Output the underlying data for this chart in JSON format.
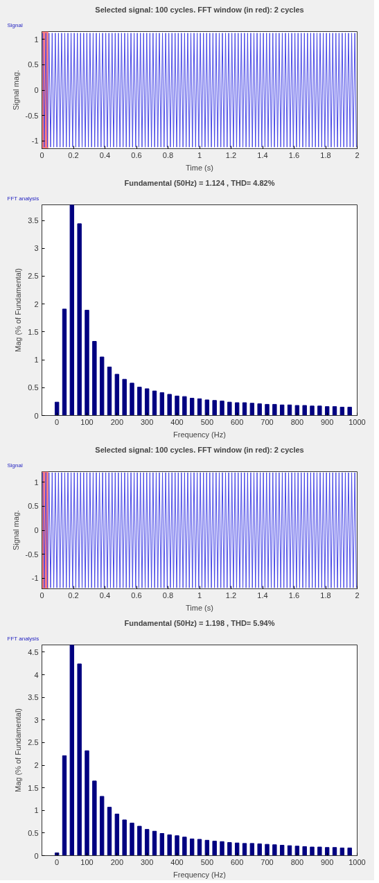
{
  "chart_data": [
    {
      "type": "line",
      "title": "Selected signal: 100 cycles. FFT window (in red): 2 cycles",
      "xlabel": "Time (s)",
      "ylabel": "Signal mag.",
      "annotations": [
        "Signal"
      ],
      "xlim": [
        0,
        2
      ],
      "xticks": [
        0,
        0.2,
        0.4,
        0.6,
        0.8,
        1,
        1.2,
        1.4,
        1.6,
        1.8,
        2
      ],
      "ylim": [
        -1.15,
        1.15
      ],
      "yticks": [
        -1,
        -0.5,
        0,
        0.5,
        1
      ],
      "bands": [
        {
          "axis": "x",
          "from": 0,
          "to": 0.04,
          "color": "#ff7070"
        }
      ],
      "series": [
        {
          "color": "#4646e6",
          "x": [
            0.005,
            0.015,
            0.025,
            0.035,
            0.045,
            0.055,
            0.065,
            0.075,
            0.085,
            0.095,
            0.105,
            0.115,
            0.125,
            0.135,
            0.145,
            0.155,
            0.165,
            0.175,
            0.185,
            0.195,
            0.205,
            0.215,
            0.225,
            0.235,
            0.245,
            0.255,
            0.265,
            0.275,
            0.285,
            0.295,
            0.305,
            0.315,
            0.325,
            0.335,
            0.345,
            0.355,
            0.365,
            0.375,
            0.385,
            0.395,
            0.405,
            0.415,
            0.425,
            0.435,
            0.445,
            0.455,
            0.465,
            0.475,
            0.485,
            0.495,
            0.505,
            0.515,
            0.525,
            0.535,
            0.545,
            0.555,
            0.565,
            0.575,
            0.585,
            0.595,
            0.605,
            0.615,
            0.625,
            0.635,
            0.645,
            0.655,
            0.665,
            0.675,
            0.685,
            0.695,
            0.705,
            0.715,
            0.725,
            0.735,
            0.745,
            0.755,
            0.765,
            0.775,
            0.785,
            0.795,
            0.805,
            0.815,
            0.825,
            0.835,
            0.845,
            0.855,
            0.865,
            0.875,
            0.885,
            0.895,
            0.905,
            0.915,
            0.925,
            0.935,
            0.945,
            0.955,
            0.965,
            0.975,
            0.985,
            0.995,
            1.005,
            1.015,
            1.025,
            1.035,
            1.045,
            1.055,
            1.065,
            1.075,
            1.085,
            1.095,
            1.105,
            1.115,
            1.125,
            1.135,
            1.145,
            1.155,
            1.165,
            1.175,
            1.185,
            1.195,
            1.205,
            1.215,
            1.225,
            1.235,
            1.245,
            1.255,
            1.265,
            1.275,
            1.285,
            1.295,
            1.305,
            1.315,
            1.325,
            1.335,
            1.345,
            1.355,
            1.365,
            1.375,
            1.385,
            1.395,
            1.405,
            1.415,
            1.425,
            1.435,
            1.445,
            1.455,
            1.465,
            1.475,
            1.485,
            1.495,
            1.505,
            1.515,
            1.525,
            1.535,
            1.545,
            1.555,
            1.565,
            1.575,
            1.585,
            1.595,
            1.605,
            1.615,
            1.625,
            1.635,
            1.645,
            1.655,
            1.665,
            1.675,
            1.685,
            1.695,
            1.705,
            1.715,
            1.725,
            1.735,
            1.745,
            1.755,
            1.765,
            1.775,
            1.785,
            1.795,
            1.805,
            1.815,
            1.825,
            1.835,
            1.845,
            1.855,
            1.865,
            1.875,
            1.885,
            1.895,
            1.905,
            1.915,
            1.925,
            1.935,
            1.945,
            1.955,
            1.965,
            1.975,
            1.985,
            1.995
          ],
          "values": [
            1.12,
            -1.12,
            1.12,
            -1.12,
            1.12,
            -1.12,
            1.12,
            -1.12,
            1.12,
            -1.12,
            1.12,
            -1.12,
            1.12,
            -1.12,
            1.12,
            -1.12,
            1.12,
            -1.12,
            1.12,
            -1.12,
            1.12,
            -1.12,
            1.12,
            -1.12,
            1.12,
            -1.12,
            1.12,
            -1.12,
            1.12,
            -1.12,
            1.12,
            -1.12,
            1.12,
            -1.12,
            1.12,
            -1.12,
            1.12,
            -1.12,
            1.12,
            -1.12,
            1.12,
            -1.12,
            1.12,
            -1.12,
            1.12,
            -1.12,
            1.12,
            -1.12,
            1.12,
            -1.12,
            1.12,
            -1.12,
            1.12,
            -1.12,
            1.12,
            -1.12,
            1.12,
            -1.12,
            1.12,
            -1.12,
            1.12,
            -1.12,
            1.12,
            -1.12,
            1.12,
            -1.12,
            1.12,
            -1.12,
            1.12,
            -1.12,
            1.12,
            -1.12,
            1.12,
            -1.12,
            1.12,
            -1.12,
            1.12,
            -1.12,
            1.12,
            -1.12,
            1.12,
            -1.12,
            1.12,
            -1.12,
            1.12,
            -1.12,
            1.12,
            -1.12,
            1.12,
            -1.12,
            1.12,
            -1.12,
            1.12,
            -1.12,
            1.12,
            -1.12,
            1.12,
            -1.12,
            1.12,
            -1.12,
            1.12,
            -1.12,
            1.12,
            -1.12,
            1.12,
            -1.12,
            1.12,
            -1.12,
            1.12,
            -1.12,
            1.12,
            -1.12,
            1.12,
            -1.12,
            1.12,
            -1.12,
            1.12,
            -1.12,
            1.12,
            -1.12,
            1.12,
            -1.12,
            1.12,
            -1.12,
            1.12,
            -1.12,
            1.12,
            -1.12,
            1.12,
            -1.12,
            1.12,
            -1.12,
            1.12,
            -1.12,
            1.12,
            -1.12,
            1.12,
            -1.12,
            1.12,
            -1.12,
            1.12,
            -1.12,
            1.12,
            -1.12,
            1.12,
            -1.12,
            1.12,
            -1.12,
            1.12,
            -1.12,
            1.12,
            -1.12,
            1.12,
            -1.12,
            1.12,
            -1.12,
            1.12,
            -1.12,
            1.12,
            -1.12,
            1.12,
            -1.12,
            1.12,
            -1.12,
            1.12,
            -1.12,
            1.12,
            -1.12,
            1.12,
            -1.12,
            1.12,
            -1.12,
            1.12,
            -1.12,
            1.12,
            -1.12,
            1.12,
            -1.12,
            1.12,
            -1.12,
            1.12,
            -1.12,
            1.12,
            -1.12,
            1.12,
            -1.12,
            1.12,
            -1.12,
            1.12,
            -1.12,
            1.12,
            -1.12,
            1.12,
            -1.12,
            1.12,
            -1.12,
            1.12,
            -1.12,
            1.12,
            -1.12
          ]
        }
      ]
    },
    {
      "type": "bar",
      "title": "Fundamental (50Hz) = 1.124 , THD= 4.82%",
      "xlabel": "Frequency (Hz)",
      "ylabel": "Mag (% of Fundamental)",
      "annotations": [
        "FFT analysis"
      ],
      "color": "#000080",
      "xlim": [
        -50,
        1000
      ],
      "xticks": [
        0,
        100,
        200,
        300,
        400,
        500,
        600,
        700,
        800,
        900,
        1000
      ],
      "ylim": [
        0,
        3.78
      ],
      "yticks": [
        0,
        0.5,
        1,
        1.5,
        2,
        2.5,
        3,
        3.5
      ],
      "x": [
        0,
        25,
        50,
        75,
        100,
        125,
        150,
        175,
        200,
        225,
        250,
        275,
        300,
        325,
        350,
        375,
        400,
        425,
        450,
        475,
        500,
        525,
        550,
        575,
        600,
        625,
        650,
        675,
        700,
        725,
        750,
        775,
        800,
        825,
        850,
        875,
        900,
        925,
        950,
        975
      ],
      "values": [
        0.24,
        1.91,
        3.78,
        3.44,
        1.89,
        1.33,
        1.05,
        0.87,
        0.74,
        0.65,
        0.58,
        0.51,
        0.48,
        0.44,
        0.41,
        0.38,
        0.35,
        0.34,
        0.31,
        0.3,
        0.28,
        0.27,
        0.26,
        0.24,
        0.23,
        0.23,
        0.22,
        0.21,
        0.2,
        0.2,
        0.19,
        0.19,
        0.18,
        0.18,
        0.17,
        0.17,
        0.16,
        0.16,
        0.15,
        0.15
      ]
    },
    {
      "type": "line",
      "title": "Selected signal: 100 cycles. FFT window (in red): 2 cycles",
      "xlabel": "Time (s)",
      "ylabel": "Signal mag.",
      "annotations": [
        "Signal"
      ],
      "xlim": [
        0,
        2
      ],
      "xticks": [
        0,
        0.2,
        0.4,
        0.6,
        0.8,
        1,
        1.2,
        1.4,
        1.6,
        1.8,
        2
      ],
      "ylim": [
        -1.22,
        1.22
      ],
      "yticks": [
        -1,
        -0.5,
        0,
        0.5,
        1
      ],
      "bands": [
        {
          "axis": "x",
          "from": 0,
          "to": 0.04,
          "color": "#ff7070"
        }
      ],
      "series": [
        {
          "color": "#4646e6",
          "x": [
            0.005,
            0.015,
            0.025,
            0.035,
            0.045,
            0.055,
            0.065,
            0.075,
            0.085,
            0.095,
            0.105,
            0.115,
            0.125,
            0.135,
            0.145,
            0.155,
            0.165,
            0.175,
            0.185,
            0.195,
            0.205,
            0.215,
            0.225,
            0.235,
            0.245,
            0.255,
            0.265,
            0.275,
            0.285,
            0.295,
            0.305,
            0.315,
            0.325,
            0.335,
            0.345,
            0.355,
            0.365,
            0.375,
            0.385,
            0.395,
            0.405,
            0.415,
            0.425,
            0.435,
            0.445,
            0.455,
            0.465,
            0.475,
            0.485,
            0.495,
            0.505,
            0.515,
            0.525,
            0.535,
            0.545,
            0.555,
            0.565,
            0.575,
            0.585,
            0.595,
            0.605,
            0.615,
            0.625,
            0.635,
            0.645,
            0.655,
            0.665,
            0.675,
            0.685,
            0.695,
            0.705,
            0.715,
            0.725,
            0.735,
            0.745,
            0.755,
            0.765,
            0.775,
            0.785,
            0.795,
            0.805,
            0.815,
            0.825,
            0.835,
            0.845,
            0.855,
            0.865,
            0.875,
            0.885,
            0.895,
            0.905,
            0.915,
            0.925,
            0.935,
            0.945,
            0.955,
            0.965,
            0.975,
            0.985,
            0.995,
            1.005,
            1.015,
            1.025,
            1.035,
            1.045,
            1.055,
            1.065,
            1.075,
            1.085,
            1.095,
            1.105,
            1.115,
            1.125,
            1.135,
            1.145,
            1.155,
            1.165,
            1.175,
            1.185,
            1.195,
            1.205,
            1.215,
            1.225,
            1.235,
            1.245,
            1.255,
            1.265,
            1.275,
            1.285,
            1.295,
            1.305,
            1.315,
            1.325,
            1.335,
            1.345,
            1.355,
            1.365,
            1.375,
            1.385,
            1.395,
            1.405,
            1.415,
            1.425,
            1.435,
            1.445,
            1.455,
            1.465,
            1.475,
            1.485,
            1.495,
            1.505,
            1.515,
            1.525,
            1.535,
            1.545,
            1.555,
            1.565,
            1.575,
            1.585,
            1.595,
            1.605,
            1.615,
            1.625,
            1.635,
            1.645,
            1.655,
            1.665,
            1.675,
            1.685,
            1.695,
            1.705,
            1.715,
            1.725,
            1.735,
            1.745,
            1.755,
            1.765,
            1.775,
            1.785,
            1.795,
            1.805,
            1.815,
            1.825,
            1.835,
            1.845,
            1.855,
            1.865,
            1.875,
            1.885,
            1.895,
            1.905,
            1.915,
            1.925,
            1.935,
            1.945,
            1.955,
            1.965,
            1.975,
            1.985,
            1.995
          ],
          "values": [
            1.2,
            -1.2,
            1.2,
            -1.2,
            1.2,
            -1.2,
            1.2,
            -1.2,
            1.2,
            -1.2,
            1.2,
            -1.2,
            1.2,
            -1.2,
            1.2,
            -1.2,
            1.2,
            -1.2,
            1.2,
            -1.2,
            1.2,
            -1.2,
            1.2,
            -1.2,
            1.2,
            -1.2,
            1.2,
            -1.2,
            1.2,
            -1.2,
            1.2,
            -1.2,
            1.2,
            -1.2,
            1.2,
            -1.2,
            1.2,
            -1.2,
            1.2,
            -1.2,
            1.2,
            -1.2,
            1.2,
            -1.2,
            1.2,
            -1.2,
            1.2,
            -1.2,
            1.2,
            -1.2,
            1.2,
            -1.2,
            1.2,
            -1.2,
            1.2,
            -1.2,
            1.2,
            -1.2,
            1.2,
            -1.2,
            1.2,
            -1.2,
            1.2,
            -1.2,
            1.2,
            -1.2,
            1.2,
            -1.2,
            1.2,
            -1.2,
            1.2,
            -1.2,
            1.2,
            -1.2,
            1.2,
            -1.2,
            1.2,
            -1.2,
            1.2,
            -1.2,
            1.2,
            -1.2,
            1.2,
            -1.2,
            1.2,
            -1.2,
            1.2,
            -1.2,
            1.2,
            -1.2,
            1.2,
            -1.2,
            1.2,
            -1.2,
            1.2,
            -1.2,
            1.2,
            -1.2,
            1.2,
            -1.2,
            1.2,
            -1.2,
            1.2,
            -1.2,
            1.2,
            -1.2,
            1.2,
            -1.2,
            1.2,
            -1.2,
            1.2,
            -1.2,
            1.2,
            -1.2,
            1.2,
            -1.2,
            1.2,
            -1.2,
            1.2,
            -1.2,
            1.2,
            -1.2,
            1.2,
            -1.2,
            1.2,
            -1.2,
            1.2,
            -1.2,
            1.2,
            -1.2,
            1.2,
            -1.2,
            1.2,
            -1.2,
            1.2,
            -1.2,
            1.2,
            -1.2,
            1.2,
            -1.2,
            1.2,
            -1.2,
            1.2,
            -1.2,
            1.2,
            -1.2,
            1.2,
            -1.2,
            1.2,
            -1.2,
            1.2,
            -1.2,
            1.2,
            -1.2,
            1.2,
            -1.2,
            1.2,
            -1.2,
            1.2,
            -1.2,
            1.2,
            -1.2,
            1.2,
            -1.2,
            1.2,
            -1.2,
            1.2,
            -1.2,
            1.2,
            -1.2,
            1.2,
            -1.2,
            1.2,
            -1.2,
            1.2,
            -1.2,
            1.2,
            -1.2,
            1.2,
            -1.2,
            1.2,
            -1.2,
            1.2,
            -1.2,
            1.2,
            -1.2,
            1.2,
            -1.2,
            1.2,
            -1.2,
            1.2,
            -1.2,
            1.2,
            -1.2,
            1.2,
            -1.2,
            1.2,
            -1.2,
            1.2,
            -1.2
          ]
        }
      ]
    },
    {
      "type": "bar",
      "title": "Fundamental (50Hz) = 1.198 , THD= 5.94%",
      "xlabel": "Frequency (Hz)",
      "ylabel": "Mag (% of Fundamental)",
      "annotations": [
        "FFT analysis"
      ],
      "color": "#000080",
      "xlim": [
        -50,
        1000
      ],
      "xticks": [
        0,
        100,
        200,
        300,
        400,
        500,
        600,
        700,
        800,
        900,
        1000
      ],
      "ylim": [
        0,
        4.66
      ],
      "yticks": [
        0,
        0.5,
        1,
        1.5,
        2,
        2.5,
        3,
        3.5,
        4,
        4.5
      ],
      "x": [
        0,
        25,
        50,
        75,
        100,
        125,
        150,
        175,
        200,
        225,
        250,
        275,
        300,
        325,
        350,
        375,
        400,
        425,
        450,
        475,
        500,
        525,
        550,
        575,
        600,
        625,
        650,
        675,
        700,
        725,
        750,
        775,
        800,
        825,
        850,
        875,
        900,
        925,
        950,
        975
      ],
      "values": [
        0.06,
        2.21,
        4.66,
        4.24,
        2.32,
        1.65,
        1.31,
        1.07,
        0.92,
        0.79,
        0.72,
        0.65,
        0.58,
        0.54,
        0.49,
        0.46,
        0.44,
        0.41,
        0.37,
        0.36,
        0.34,
        0.32,
        0.31,
        0.29,
        0.28,
        0.27,
        0.27,
        0.26,
        0.25,
        0.24,
        0.23,
        0.22,
        0.21,
        0.2,
        0.19,
        0.19,
        0.18,
        0.18,
        0.17,
        0.17
      ]
    }
  ]
}
